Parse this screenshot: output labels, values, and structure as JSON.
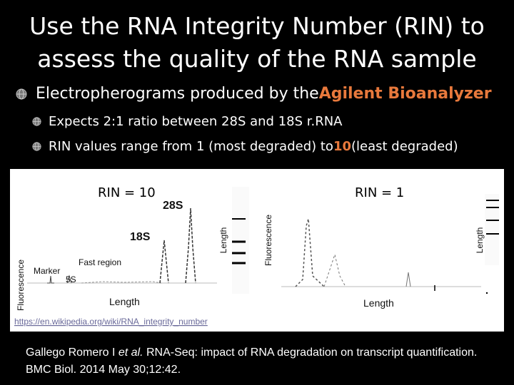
{
  "slide": {
    "title_line1": "Use the RNA Integrity Number (RIN) to",
    "title_line2": "assess the quality of the RNA sample",
    "bullets": {
      "main_text": "Electropherograms produced by the ",
      "main_highlight": "Agilent Bioanalyzer",
      "sub1": "Expects 2:1 ratio between 28S and 18S r.RNA",
      "sub2_before": "RIN values range from 1 (most degraded) to ",
      "sub2_highlight": "10",
      "sub2_after": " (least degraded)"
    },
    "accent_color": "#e8793c"
  },
  "figure": {
    "left": {
      "heading": "RIN = 10",
      "y_axis": "Fluorescence",
      "x_axis": "Length",
      "gel_axis": "Length",
      "peak_28s": "28S",
      "peak_18s": "18S",
      "fast_region": "Fast region",
      "marker": "Marker",
      "peak_5s": "5S"
    },
    "right": {
      "heading": "RIN = 1",
      "y_axis": "Fluorescence",
      "x_axis": "Length",
      "gel_axis": "Length"
    },
    "source_url": "https://en.wikipedia.org/wiki/RNA_integrity_number"
  },
  "citation": {
    "authors": "Gallego Romero I ",
    "etal": "et al.",
    "rest": " RNA-Seq: impact of RNA degradation on transcript quantification. BMC Biol. 2014 May 30;12:42."
  }
}
